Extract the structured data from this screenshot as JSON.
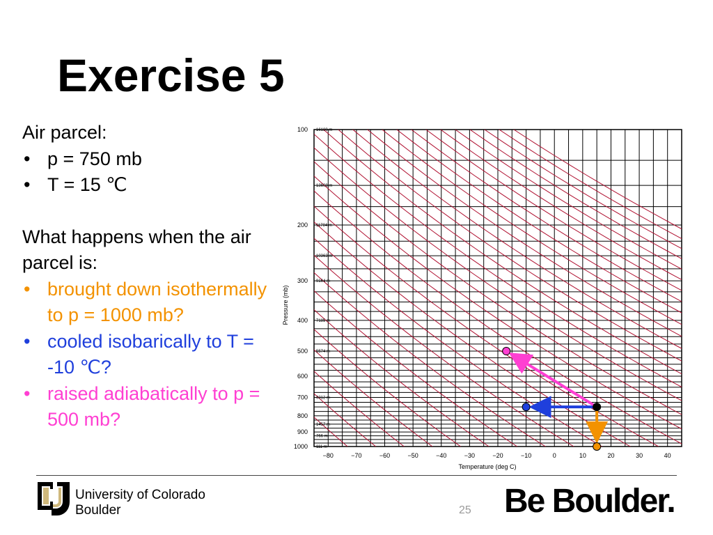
{
  "title": "Exercise 5",
  "left": {
    "heading": "Air parcel:",
    "given": [
      "p = 750 mb",
      "T = 15 ℃"
    ],
    "question": "What happens when the air parcel is:",
    "tasks": [
      {
        "text": "brought down isothermally to p = 1000 mb?",
        "color": "#f39200"
      },
      {
        "text": "cooled isobarically to T = -10 ℃?",
        "color": "#1f3fdc"
      },
      {
        "text": "raised adiabatically to p = 500 mb?",
        "color": "#ff3fd2"
      }
    ]
  },
  "chart_data": {
    "type": "thermodynamic-diagram",
    "xlabel": "Temperature (deg C)",
    "ylabel": "Pressure (mb)",
    "xlim": [
      -85,
      45
    ],
    "x_ticks": [
      -80,
      -70,
      -60,
      -50,
      -40,
      -30,
      -20,
      -10,
      0,
      10,
      20,
      30,
      40
    ],
    "y_ticks": [
      100,
      200,
      300,
      400,
      500,
      600,
      700,
      800,
      900,
      1000
    ],
    "y_scale": "log-inverted",
    "height_labels": [
      {
        "p": 100,
        "label": "16180 m"
      },
      {
        "p": 150,
        "label": "13608 m"
      },
      {
        "p": 200,
        "label": "11784 m"
      },
      {
        "p": 250,
        "label": "10363 m"
      },
      {
        "p": 300,
        "label": "9164 m"
      },
      {
        "p": 400,
        "label": "7185 m"
      },
      {
        "p": 500,
        "label": "5574 m"
      },
      {
        "p": 700,
        "label": "3012 m"
      },
      {
        "p": 850,
        "label": "1457 m"
      },
      {
        "p": 925,
        "label": "766 m"
      },
      {
        "p": 1000,
        "label": "111 m"
      }
    ],
    "points": [
      {
        "name": "start",
        "T": 15,
        "p": 750,
        "color": "#000000"
      },
      {
        "name": "isothermal-end",
        "T": 15,
        "p": 1000,
        "color": "#f39200"
      },
      {
        "name": "isobaric-end",
        "T": -10,
        "p": 750,
        "color": "#1f3fdc"
      },
      {
        "name": "adiabatic-end",
        "T": -17,
        "p": 500,
        "color": "#ff3fd2"
      }
    ],
    "grid": true
  },
  "footer": {
    "university_line1": "University of Colorado",
    "university_line2": "Boulder",
    "page_number": "25",
    "tagline": "Be Boulder."
  }
}
